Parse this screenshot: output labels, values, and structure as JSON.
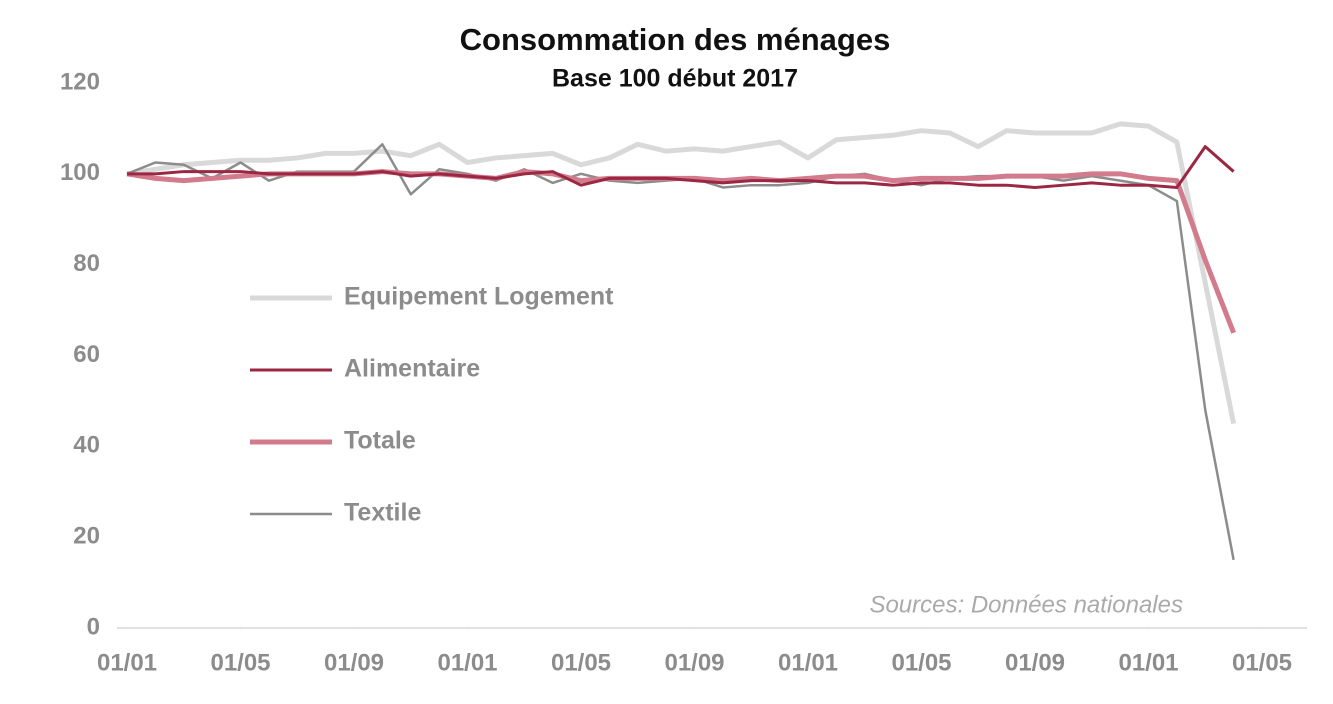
{
  "chart_data": {
    "type": "line",
    "title": "Consommation des ménages",
    "subtitle": "Base 100 début 2017",
    "annotation": "Sources: Données nationales",
    "x": [
      0,
      1,
      2,
      3,
      4,
      5,
      6,
      7,
      8,
      9,
      10,
      11,
      12,
      13,
      14,
      15,
      16,
      17,
      18,
      19,
      20,
      21,
      22,
      23,
      24,
      25,
      26,
      27,
      28,
      29,
      30,
      31,
      32,
      33,
      34,
      35,
      36,
      37,
      38,
      39
    ],
    "xlim": [
      0,
      40
    ],
    "xticks": [
      {
        "value": 0,
        "label": "01/01"
      },
      {
        "value": 4,
        "label": "01/05"
      },
      {
        "value": 8,
        "label": "01/09"
      },
      {
        "value": 12,
        "label": "01/01"
      },
      {
        "value": 16,
        "label": "01/05"
      },
      {
        "value": 20,
        "label": "01/09"
      },
      {
        "value": 24,
        "label": "01/01"
      },
      {
        "value": 28,
        "label": "01/05"
      },
      {
        "value": 32,
        "label": "01/09"
      },
      {
        "value": 36,
        "label": "01/01"
      },
      {
        "value": 40,
        "label": "01/05"
      }
    ],
    "ylim": [
      0,
      120
    ],
    "yticks": [
      0,
      20,
      40,
      60,
      80,
      100,
      120
    ],
    "grid": false,
    "series": [
      {
        "name": "Equipement Logement",
        "color": "#d9d9d9",
        "values": [
          100,
          101,
          102,
          102.5,
          103,
          103,
          103.5,
          104.5,
          104.5,
          105,
          104,
          106.5,
          102.5,
          103.5,
          104,
          104.5,
          102,
          103.5,
          106.5,
          105,
          105.5,
          105,
          106,
          107,
          103.5,
          107.5,
          108,
          108.5,
          109.5,
          109,
          106,
          109.5,
          109,
          109,
          109,
          111,
          110.5,
          107,
          76,
          45
        ]
      },
      {
        "name": "Alimentaire",
        "color": "#9b2743",
        "values": [
          100,
          100,
          100.5,
          100.5,
          100.5,
          100,
          100,
          100,
          100,
          100.5,
          99.5,
          100,
          99.5,
          99,
          100,
          100.5,
          97.5,
          99,
          99,
          99,
          98.5,
          98,
          98.5,
          98.5,
          98.5,
          98,
          98,
          97.5,
          98,
          98,
          97.5,
          97.5,
          97,
          97.5,
          98,
          97.5,
          97.5,
          97,
          106,
          100.5
        ]
      },
      {
        "name": "Totale",
        "color": "#d17b8c",
        "values": [
          100,
          99,
          98.5,
          99,
          99.5,
          100,
          100,
          100,
          100,
          100.5,
          100,
          100,
          99.5,
          99,
          100.5,
          100,
          98.5,
          99,
          99,
          99,
          99,
          98.5,
          99,
          98.5,
          99,
          99.5,
          99.5,
          98.5,
          99,
          99,
          99,
          99.5,
          99.5,
          99.5,
          100,
          100,
          99,
          98.5,
          81,
          65
        ]
      },
      {
        "name": "Textile",
        "color": "#8c8c8c",
        "values": [
          100,
          102.5,
          102,
          99,
          102.5,
          98.5,
          100.5,
          100.5,
          100.5,
          106.5,
          95.5,
          101,
          100,
          98.5,
          101,
          98,
          100,
          98.5,
          98,
          98.5,
          99,
          97,
          97.5,
          97.5,
          98,
          99.5,
          100,
          98.5,
          97.5,
          99,
          99.5,
          99.5,
          99.5,
          98.5,
          99.5,
          98.5,
          97.5,
          94,
          48,
          15
        ]
      }
    ]
  }
}
